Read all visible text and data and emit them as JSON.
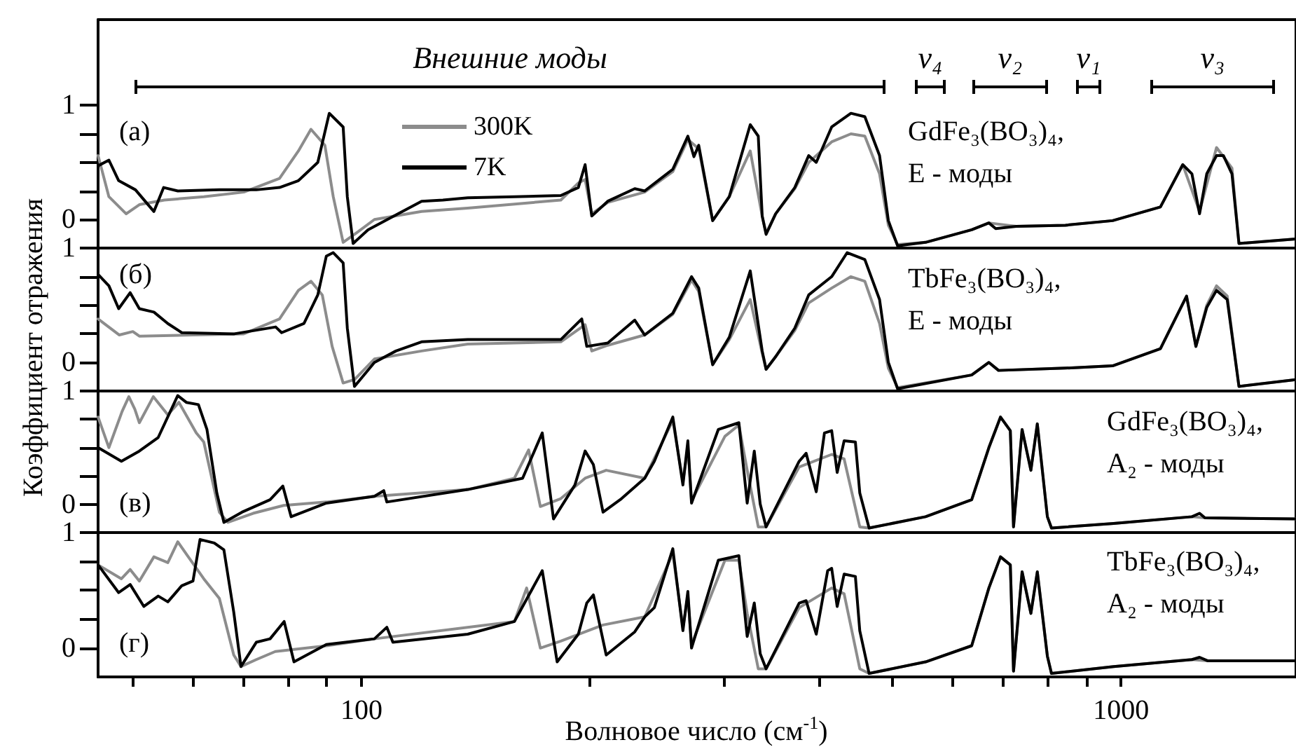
{
  "chart_data": [
    {
      "type": "line",
      "log": "x",
      "ylabel": "Коэффициент отражения",
      "legend": "left",
      "tick_labels": "y",
      "xlim": [
        45,
        1700
      ],
      "ylim": [
        -0.25,
        1.75
      ],
      "yticks": [
        {
          "value": 0,
          "label": "0"
        },
        {
          "value": 0.25,
          "label": null
        },
        {
          "value": 0.5,
          "label": null
        },
        {
          "value": 0.75,
          "label": null
        },
        {
          "value": 1,
          "label": "1"
        }
      ],
      "annotations": [
        "(а)",
        "GdFe₃(BO₃)₄,",
        "E - моды",
        "Внешние моды",
        "ν₄",
        "ν₂",
        "ν₁",
        "ν₃"
      ],
      "series": [
        {
          "name": "300K",
          "color": "#8c8c8c",
          "x": [
            45,
            46.5,
            49,
            51,
            55,
            62,
            70,
            78,
            82.6,
            85.8,
            89.5,
            91.8,
            94.6,
            97.9,
            104,
            120,
            138,
            183,
            193,
            197,
            201,
            211,
            236,
            257,
            269,
            278,
            290,
            305,
            325,
            337,
            341,
            351,
            372,
            388,
            416,
            441,
            460,
            481,
            494,
            508,
            553,
            636,
            670,
            728,
            845,
            975,
            1127,
            1206,
            1269,
            1336,
            1400,
            1430,
            1700
          ],
          "values": [
            0.56,
            0.2,
            0.05,
            0.13,
            0.17,
            0.2,
            0.24,
            0.36,
            0.6,
            0.79,
            0.65,
            0.2,
            -0.2,
            -0.13,
            0,
            0.07,
            0.1,
            0.17,
            0.32,
            0.35,
            0.05,
            0.15,
            0.24,
            0.42,
            0.7,
            0.62,
            -0.01,
            0.2,
            0.6,
            0.03,
            -0.12,
            0.05,
            0.27,
            0.5,
            0.68,
            0.75,
            0.73,
            0.4,
            -0.05,
            -0.22,
            -0.2,
            -0.09,
            -0.03,
            -0.06,
            -0.05,
            -0.01,
            0.11,
            0.48,
            0.07,
            0.63,
            0.45,
            -0.21,
            -0.17
          ]
        },
        {
          "name": "7K",
          "color": "#000000",
          "x": [
            45,
            46.5,
            47.9,
            50.4,
            53.3,
            54.9,
            57.3,
            65,
            72.7,
            78,
            82.6,
            87.6,
            90.7,
            94.6,
            95.8,
            97.5,
            102,
            111,
            120,
            128,
            138,
            159,
            183,
            193,
            197,
            201,
            211,
            229,
            236,
            257,
            269,
            274,
            278,
            290,
            305,
            325,
            333,
            337,
            341,
            351,
            372,
            388,
            397,
            416,
            441,
            460,
            481,
            494,
            508,
            553,
            636,
            670,
            684,
            728,
            845,
            975,
            1127,
            1206,
            1240,
            1269,
            1297,
            1336,
            1364,
            1400,
            1430,
            1700
          ],
          "values": [
            0.47,
            0.52,
            0.34,
            0.26,
            0.07,
            0.28,
            0.25,
            0.26,
            0.26,
            0.28,
            0.34,
            0.5,
            0.93,
            0.81,
            0.2,
            -0.21,
            -0.09,
            0.04,
            0.16,
            0.17,
            0.19,
            0.2,
            0.21,
            0.28,
            0.48,
            0.03,
            0.16,
            0.27,
            0.25,
            0.44,
            0.73,
            0.55,
            0.65,
            -0.01,
            0.2,
            0.83,
            0.73,
            0.03,
            -0.13,
            0.05,
            0.28,
            0.56,
            0.5,
            0.81,
            0.93,
            0.9,
            0.56,
            -0.01,
            -0.23,
            -0.2,
            -0.09,
            -0.03,
            -0.08,
            -0.06,
            -0.05,
            -0.01,
            0.11,
            0.48,
            0.4,
            0.05,
            0.4,
            0.56,
            0.56,
            0.4,
            -0.21,
            -0.17
          ]
        }
      ]
    },
    {
      "type": "line",
      "log": "x",
      "tick_labels": "y",
      "xlim": [
        45,
        1700
      ],
      "ylim": [
        -0.25,
        1
      ],
      "yticks": [
        {
          "value": 0,
          "label": "0"
        },
        {
          "value": 0.25,
          "label": null
        },
        {
          "value": 0.5,
          "label": null
        },
        {
          "value": 0.75,
          "label": null
        },
        {
          "value": 1,
          "label": "1"
        }
      ],
      "annotations": [
        "(б)",
        "TbFe₃(BO₃)₄,",
        "E - моды"
      ],
      "series": [
        {
          "color": "#8c8c8c",
          "x": [
            45,
            48,
            50,
            51,
            60,
            70,
            78,
            82.6,
            85.8,
            88.8,
            91.5,
            94.6,
            97.9,
            104,
            120,
            138,
            183,
            197,
            201,
            211,
            236,
            257,
            272,
            278,
            290,
            305,
            325,
            337,
            341,
            351,
            372,
            388,
            416,
            441,
            460,
            481,
            494,
            508,
            636,
            670,
            690,
            845,
            975,
            1127,
            1220,
            1255,
            1297,
            1336,
            1380,
            1430,
            1700
          ],
          "values": [
            0.38,
            0.24,
            0.27,
            0.23,
            0.24,
            0.25,
            0.38,
            0.63,
            0.71,
            0.59,
            0.14,
            -0.18,
            -0.15,
            0.03,
            0.1,
            0.16,
            0.18,
            0.33,
            0.1,
            0.15,
            0.24,
            0.42,
            0.72,
            0.62,
            -0.02,
            0.2,
            0.55,
            0.08,
            -0.06,
            0.05,
            0.28,
            0.52,
            0.65,
            0.75,
            0.71,
            0.34,
            -0.05,
            -0.22,
            -0.11,
            0,
            -0.07,
            -0.05,
            -0.03,
            0.12,
            0.58,
            0.14,
            0.5,
            0.67,
            0.58,
            -0.21,
            -0.15
          ]
        },
        {
          "color": "#000000",
          "x": [
            45,
            46.5,
            47.9,
            49.6,
            51,
            53.3,
            55.6,
            58,
            68,
            77.1,
            78.5,
            84,
            87.6,
            89.9,
            91.8,
            94.6,
            95.8,
            97.9,
            104,
            111,
            120,
            138,
            183,
            195,
            198,
            211,
            229,
            236,
            257,
            272,
            278,
            290,
            305,
            325,
            337,
            341,
            351,
            372,
            388,
            416,
            436,
            460,
            481,
            494,
            508,
            636,
            670,
            690,
            845,
            975,
            1127,
            1220,
            1255,
            1297,
            1336,
            1380,
            1430,
            1700
          ],
          "values": [
            0.77,
            0.67,
            0.47,
            0.61,
            0.47,
            0.44,
            0.34,
            0.26,
            0.25,
            0.31,
            0.26,
            0.34,
            0.59,
            0.93,
            0.96,
            0.87,
            0.3,
            -0.21,
            0,
            0.1,
            0.18,
            0.2,
            0.2,
            0.38,
            0.14,
            0.17,
            0.37,
            0.24,
            0.43,
            0.75,
            0.65,
            -0.02,
            0.22,
            0.8,
            0.1,
            -0.06,
            0.05,
            0.3,
            0.59,
            0.75,
            0.96,
            0.9,
            0.55,
            0,
            -0.23,
            -0.11,
            0,
            -0.07,
            -0.05,
            -0.03,
            0.12,
            0.58,
            0.14,
            0.48,
            0.63,
            0.55,
            -0.21,
            -0.15
          ]
        }
      ]
    },
    {
      "type": "line",
      "log": "x",
      "tick_labels": "y",
      "xlim": [
        45,
        1700
      ],
      "ylim": [
        -0.25,
        1
      ],
      "yticks": [
        {
          "value": 0,
          "label": "0"
        },
        {
          "value": 0.25,
          "label": null
        },
        {
          "value": 0.5,
          "label": null
        },
        {
          "value": 0.75,
          "label": null
        },
        {
          "value": 1,
          "label": "1"
        }
      ],
      "annotations": [
        "(в)",
        "GdFe₃(BO₃)₄,",
        "A₂ - моды"
      ],
      "series": [
        {
          "color": "#8c8c8c",
          "x": [
            45,
            46.5,
            48.4,
            49.4,
            50.3,
            51,
            53.2,
            55.6,
            57.5,
            60.6,
            62,
            65,
            66.7,
            72,
            79,
            90,
            104,
            138,
            159,
            166,
            172,
            183,
            197,
            210,
            236,
            257,
            265,
            269,
            272,
            301,
            314,
            322,
            333,
            341,
            377,
            416,
            432,
            453,
            466,
            553,
            636,
            670,
            694,
            715,
            722,
            741,
            761,
            776,
            800,
            810,
            978,
            1240,
            1290,
            1700
          ],
          "values": [
            0.77,
            0.5,
            0.82,
            0.95,
            0.84,
            0.72,
            0.95,
            0.79,
            0.9,
            0.63,
            0.55,
            -0.07,
            -0.16,
            -0.08,
            -0.01,
            0.02,
            0.07,
            0.13,
            0.23,
            0.48,
            -0.02,
            0.05,
            0.23,
            0.3,
            0.23,
            0.74,
            0.2,
            0.5,
            0.03,
            0.6,
            0.7,
            0.3,
            -0.2,
            -0.2,
            0.33,
            0.44,
            0.4,
            -0.2,
            -0.21,
            -0.11,
            0.04,
            0.5,
            0.77,
            0.65,
            -0.2,
            0.66,
            0.3,
            0.71,
            -0.11,
            -0.21,
            -0.17,
            -0.11,
            -0.12,
            -0.13
          ]
        },
        {
          "color": "#000000",
          "x": [
            45,
            48.3,
            51,
            54,
            57.3,
            58.8,
            61,
            62.6,
            64.5,
            65.9,
            69.6,
            75.8,
            78.8,
            80.8,
            89.9,
            104,
            107,
            108,
            138,
            163,
            173,
            179,
            191,
            197,
            202,
            208,
            220,
            236,
            243,
            257,
            265,
            269,
            272,
            295,
            314,
            322,
            329,
            335,
            341,
            377,
            385,
            397,
            407,
            416,
            423,
            432,
            447,
            453,
            466,
            553,
            636,
            670,
            694,
            715,
            722,
            741,
            761,
            776,
            800,
            810,
            978,
            1240,
            1269,
            1290,
            1700
          ],
          "values": [
            0.5,
            0.38,
            0.47,
            0.59,
            0.96,
            0.9,
            0.88,
            0.66,
            0.1,
            -0.16,
            -0.07,
            0.04,
            0.16,
            -0.11,
            0.01,
            0.07,
            0.12,
            0.02,
            0.13,
            0.23,
            0.63,
            -0.13,
            0.17,
            0.47,
            0.35,
            -0.07,
            0.05,
            0.23,
            0.38,
            0.77,
            0.17,
            0.56,
            0.01,
            0.66,
            0.72,
            0.01,
            0.47,
            0,
            -0.2,
            0.38,
            0.45,
            0.11,
            0.63,
            0.65,
            0.28,
            0.56,
            0.55,
            0.1,
            -0.21,
            -0.11,
            0.04,
            0.5,
            0.77,
            0.65,
            -0.2,
            0.66,
            0.3,
            0.71,
            -0.11,
            -0.21,
            -0.17,
            -0.11,
            -0.08,
            -0.12,
            -0.13
          ]
        }
      ]
    },
    {
      "type": "line",
      "log": "x",
      "xlabel": "Волновое число (см$^{-1}$)",
      "xlim": [
        45,
        1700
      ],
      "ylim": [
        -0.25,
        1
      ],
      "xticks": [
        {
          "value": 50,
          "label": null
        },
        {
          "value": 60,
          "label": null
        },
        {
          "value": 70,
          "label": null
        },
        {
          "value": 80,
          "label": null
        },
        {
          "value": 90,
          "label": null
        },
        {
          "value": 100,
          "label": "100"
        },
        {
          "value": 200,
          "label": null
        },
        {
          "value": 300,
          "label": null
        },
        {
          "value": 400,
          "label": null
        },
        {
          "value": 500,
          "label": null
        },
        {
          "value": 600,
          "label": null
        },
        {
          "value": 700,
          "label": null
        },
        {
          "value": 800,
          "label": null
        },
        {
          "value": 900,
          "label": null
        },
        {
          "value": 1000,
          "label": "1000"
        }
      ],
      "yticks": [
        {
          "value": 0,
          "label": "0"
        },
        {
          "value": 0.25,
          "label": null
        },
        {
          "value": 0.5,
          "label": null
        },
        {
          "value": 0.75,
          "label": null
        },
        {
          "value": 1,
          "label": "1"
        }
      ],
      "annotations": [
        "(г)",
        "TbFe₃(BO₃)₄,",
        "A₂ - моды"
      ],
      "series": [
        {
          "color": "#8c8c8c",
          "x": [
            45,
            48.3,
            49.6,
            51,
            53.3,
            55.6,
            57.3,
            59,
            62,
            65,
            67.9,
            69.4,
            72.7,
            77,
            90,
            104,
            159,
            165,
            172,
            183,
            208,
            236,
            257,
            265,
            269,
            272,
            301,
            314,
            322,
            333,
            341,
            377,
            416,
            432,
            453,
            466,
            553,
            636,
            670,
            694,
            715,
            722,
            741,
            761,
            776,
            800,
            810,
            978,
            1240,
            1300,
            1700
          ],
          "values": [
            0.72,
            0.6,
            0.68,
            0.58,
            0.79,
            0.74,
            0.92,
            0.8,
            0.6,
            0.43,
            -0.06,
            -0.16,
            -0.1,
            -0.03,
            0.02,
            0.08,
            0.23,
            0.52,
            0,
            0.06,
            0.2,
            0.27,
            0.82,
            0.18,
            0.45,
            0.03,
            0.76,
            0.76,
            0.3,
            -0.18,
            -0.18,
            0.35,
            0.52,
            0.47,
            -0.18,
            -0.22,
            -0.12,
            0.02,
            0.52,
            0.79,
            0.72,
            -0.2,
            0.66,
            0.3,
            0.66,
            -0.07,
            -0.22,
            -0.16,
            -0.1,
            -0.11,
            -0.11
          ]
        },
        {
          "color": "#000000",
          "x": [
            45,
            47.9,
            49.6,
            51.7,
            54,
            55.6,
            58,
            60,
            61.3,
            64,
            65.9,
            67.9,
            69.4,
            72.7,
            75.8,
            79.1,
            81.5,
            89.9,
            104,
            108,
            110,
            138,
            159,
            173,
            181,
            193,
            198,
            202,
            210,
            229,
            236,
            243,
            257,
            265,
            269,
            272,
            295,
            314,
            322,
            329,
            335,
            341,
            377,
            385,
            397,
            411,
            416,
            423,
            432,
            447,
            453,
            466,
            553,
            636,
            670,
            694,
            715,
            722,
            741,
            761,
            776,
            800,
            810,
            978,
            1240,
            1269,
            1300,
            1700
          ],
          "values": [
            0.72,
            0.48,
            0.55,
            0.36,
            0.45,
            0.4,
            0.54,
            0.58,
            0.94,
            0.91,
            0.85,
            0.31,
            -0.16,
            0.05,
            0.08,
            0.23,
            -0.12,
            0.03,
            0.08,
            0.18,
            0.05,
            0.12,
            0.23,
            0.67,
            -0.12,
            0.12,
            0.39,
            0.46,
            -0.06,
            0.14,
            0.27,
            0.35,
            0.86,
            0.15,
            0.49,
            0,
            0.76,
            0.8,
            0.1,
            0.39,
            -0.05,
            -0.18,
            0.39,
            0.41,
            0.12,
            0.67,
            0.69,
            0.36,
            0.64,
            0.62,
            0.15,
            -0.22,
            -0.12,
            0.02,
            0.52,
            0.79,
            0.72,
            -0.2,
            0.66,
            0.3,
            0.66,
            -0.07,
            -0.22,
            -0.16,
            -0.1,
            -0.08,
            -0.11,
            -0.11
          ]
        }
      ]
    }
  ]
}
